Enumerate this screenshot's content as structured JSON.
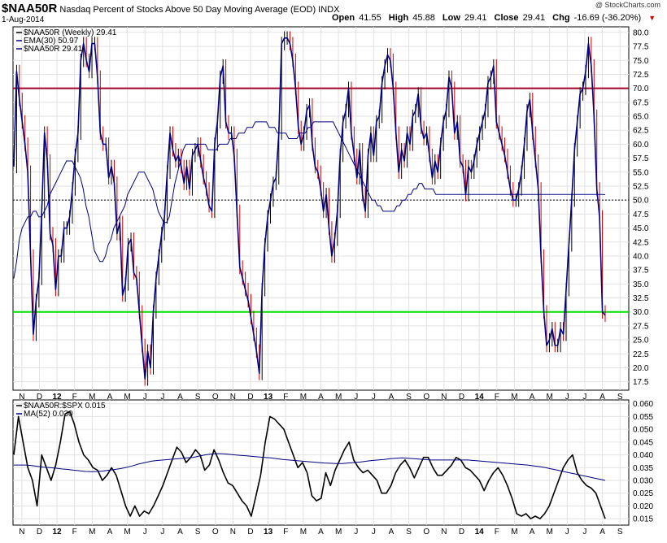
{
  "header": {
    "symbol": "$NAA50R",
    "description": "Nasdaq Percent of Stocks Above 50 Day Moving Average (EOD)",
    "exchange": "INDX",
    "date": "1-Aug-2014",
    "open_label": "Open",
    "open": "41.55",
    "high_label": "High",
    "high": "45.88",
    "low_label": "Low",
    "low": "29.41",
    "close_label": "Close",
    "close": "29.41",
    "chg_label": "Chg",
    "chg": "-16.69 (-36.20%)",
    "watermark": "@ StockCharts.com"
  },
  "colors": {
    "price_up": "#000000",
    "price_down": "#cc0000",
    "weekly_line": "#000080",
    "ema_line": "#000080",
    "ratio_line": "#000000",
    "ma_line": "#000080",
    "level_70": "#a00028",
    "level_30": "#00dd00"
  },
  "chart_data": [
    {
      "type": "line",
      "title": "$NAA50R (Weekly) 29.41",
      "legend": [
        "$NAA50R (Weekly) 29.41",
        "EMA(30) 50.97",
        "$NAA50R 29.41"
      ],
      "x_ticks": [
        "N",
        "D",
        "12",
        "F",
        "M",
        "A",
        "M",
        "J",
        "J",
        "A",
        "S",
        "O",
        "N",
        "D",
        "13",
        "F",
        "M",
        "A",
        "M",
        "J",
        "J",
        "A",
        "S",
        "O",
        "N",
        "D",
        "14",
        "F",
        "M",
        "A",
        "M",
        "J",
        "J",
        "A",
        "S"
      ],
      "y_ticks": [
        "17.5",
        "20.0",
        "22.5",
        "25.0",
        "27.5",
        "30.0",
        "32.5",
        "35.0",
        "37.5",
        "40.0",
        "42.5",
        "45.0",
        "47.5",
        "50.0",
        "52.5",
        "55.0",
        "57.5",
        "60.0",
        "62.5",
        "65.0",
        "67.5",
        "70.0",
        "72.5",
        "75.0",
        "77.5",
        "80.0"
      ],
      "ylim": [
        16,
        81
      ],
      "reference_lines": [
        70,
        50,
        30
      ],
      "series": [
        {
          "name": "$NAA50R (Weekly)",
          "values": [
            56,
            73,
            68,
            64,
            60,
            55,
            40,
            26,
            32,
            36,
            48,
            62,
            57,
            44,
            42,
            34,
            40,
            40,
            45,
            45,
            47,
            52,
            58,
            62,
            75,
            78,
            75,
            73,
            78,
            78,
            72,
            62,
            60,
            60,
            54,
            56,
            53,
            44,
            46,
            33,
            35,
            42,
            43,
            37,
            36,
            30,
            24,
            18,
            23,
            20,
            30,
            36,
            40,
            44,
            47,
            55,
            62,
            59,
            57,
            58,
            56,
            53,
            56,
            52,
            58,
            59,
            60,
            57,
            54,
            52,
            49,
            48,
            60,
            64,
            72,
            74,
            64,
            62,
            62,
            58,
            48,
            38,
            36,
            34,
            32,
            29,
            26,
            23,
            19,
            34,
            42,
            47,
            50,
            53,
            54,
            62,
            78,
            79,
            79,
            78,
            75,
            70,
            63,
            60,
            62,
            66,
            67,
            60,
            56,
            55,
            52,
            48,
            51,
            45,
            40,
            43,
            48,
            58,
            64,
            66,
            70,
            62,
            58,
            54,
            59,
            51,
            48,
            58,
            62,
            58,
            64,
            65,
            71,
            74,
            76,
            75,
            70,
            62,
            55,
            59,
            57,
            62,
            60,
            65,
            66,
            69,
            63,
            61,
            62,
            58,
            54,
            57,
            55,
            60,
            64,
            66,
            72,
            70,
            62,
            64,
            57,
            56,
            51,
            56,
            55,
            57,
            60,
            62,
            64,
            66,
            71,
            72,
            74,
            64,
            62,
            60,
            58,
            55,
            52,
            50,
            50,
            52,
            55,
            60,
            66,
            68,
            62,
            57,
            52,
            40,
            30,
            24,
            25,
            27,
            24,
            24,
            27,
            26,
            34,
            42,
            50,
            59,
            64,
            69,
            70,
            73,
            78,
            74,
            65,
            52,
            47,
            30,
            29.41
          ]
        },
        {
          "name": "EMA(30)",
          "values": [
            36,
            39,
            43,
            45,
            46,
            47,
            47,
            48,
            48,
            47,
            47,
            48,
            49,
            51,
            52,
            53,
            54,
            55,
            56,
            57,
            57,
            57,
            56,
            55,
            54,
            52,
            49,
            47,
            44,
            41,
            40,
            39,
            39,
            40,
            42,
            43,
            45,
            46,
            47,
            48,
            49,
            51,
            52,
            53,
            54,
            55,
            55,
            55,
            54,
            53,
            52,
            50,
            48,
            47,
            46,
            46,
            47,
            50,
            53,
            55,
            57,
            59,
            60,
            60,
            60,
            60,
            60,
            60,
            60,
            60,
            59,
            59,
            59,
            59,
            60,
            60,
            60,
            60,
            61,
            61,
            61,
            62,
            62,
            62,
            63,
            63,
            63,
            64,
            64,
            64,
            64,
            64,
            63,
            63,
            63,
            62,
            62,
            62,
            62,
            61,
            61,
            61,
            61,
            62,
            62,
            62,
            63,
            63,
            64,
            64,
            64,
            64,
            64,
            64,
            64,
            64,
            63,
            62,
            61,
            60,
            59,
            58,
            57,
            56,
            55,
            54,
            53,
            52,
            51,
            50,
            50,
            49,
            49,
            48,
            48,
            48,
            48,
            48,
            49,
            49,
            50,
            50,
            51,
            51,
            52,
            52,
            53,
            53,
            52,
            52,
            52,
            52,
            51,
            51,
            51,
            51,
            51,
            51,
            51,
            51,
            51,
            51,
            51,
            51,
            51,
            51,
            51,
            51,
            51,
            51,
            51,
            51,
            51,
            51,
            51,
            51,
            51,
            51,
            51,
            51,
            51,
            51,
            51,
            51,
            51,
            51,
            51,
            51,
            51,
            51,
            51,
            51,
            51,
            51,
            51,
            51,
            51,
            51,
            51,
            51,
            51,
            51,
            51,
            51,
            51,
            51,
            51,
            51,
            51,
            51,
            51,
            51,
            51,
            50.97
          ]
        }
      ]
    },
    {
      "type": "line",
      "title": "$NAA50R:$SPX 0.015",
      "legend": [
        "$NAA50R:$SPX 0.015",
        "MA(52) 0.030"
      ],
      "x_ticks": [
        "N",
        "D",
        "12",
        "F",
        "M",
        "A",
        "M",
        "J",
        "J",
        "A",
        "S",
        "O",
        "N",
        "D",
        "13",
        "F",
        "M",
        "A",
        "M",
        "J",
        "J",
        "A",
        "S",
        "O",
        "N",
        "D",
        "14",
        "F",
        "M",
        "A",
        "M",
        "J",
        "J",
        "A",
        "S"
      ],
      "y_ticks": [
        "0.015",
        "0.020",
        "0.025",
        "0.030",
        "0.035",
        "0.040",
        "0.045",
        "0.050",
        "0.055",
        "0.060"
      ],
      "ylim": [
        0.0125,
        0.0615
      ],
      "series": [
        {
          "name": "$NAA50R:$SPX",
          "values": [
            0.04,
            0.055,
            0.045,
            0.035,
            0.03,
            0.02,
            0.04,
            0.035,
            0.03,
            0.036,
            0.045,
            0.056,
            0.057,
            0.052,
            0.045,
            0.04,
            0.038,
            0.035,
            0.034,
            0.03,
            0.032,
            0.035,
            0.032,
            0.026,
            0.02,
            0.016,
            0.02,
            0.016,
            0.018,
            0.017,
            0.02,
            0.024,
            0.028,
            0.033,
            0.038,
            0.043,
            0.041,
            0.037,
            0.039,
            0.042,
            0.04,
            0.034,
            0.036,
            0.042,
            0.038,
            0.033,
            0.029,
            0.028,
            0.025,
            0.022,
            0.02,
            0.016,
            0.024,
            0.032,
            0.045,
            0.055,
            0.054,
            0.052,
            0.05,
            0.045,
            0.04,
            0.035,
            0.037,
            0.033,
            0.024,
            0.022,
            0.023,
            0.033,
            0.028,
            0.034,
            0.038,
            0.042,
            0.045,
            0.038,
            0.035,
            0.033,
            0.034,
            0.032,
            0.03,
            0.025,
            0.025,
            0.028,
            0.033,
            0.036,
            0.038,
            0.035,
            0.031,
            0.035,
            0.039,
            0.039,
            0.035,
            0.032,
            0.032,
            0.034,
            0.036,
            0.039,
            0.038,
            0.035,
            0.034,
            0.032,
            0.03,
            0.026,
            0.03,
            0.033,
            0.035,
            0.032,
            0.028,
            0.023,
            0.017,
            0.016,
            0.017,
            0.015,
            0.016,
            0.015,
            0.017,
            0.02,
            0.025,
            0.03,
            0.035,
            0.038,
            0.04,
            0.033,
            0.03,
            0.028,
            0.027,
            0.025,
            0.02,
            0.015
          ]
        },
        {
          "name": "MA(52)",
          "values": [
            0.036,
            0.036,
            0.036,
            0.0358,
            0.0355,
            0.0352,
            0.035,
            0.0348,
            0.0345,
            0.0343,
            0.034,
            0.0338,
            0.0335,
            0.0334,
            0.0335,
            0.0337,
            0.034,
            0.0343,
            0.0347,
            0.0352,
            0.0358,
            0.0365,
            0.037,
            0.0375,
            0.0378,
            0.038,
            0.0382,
            0.0384,
            0.0386,
            0.0388,
            0.039,
            0.0395,
            0.04,
            0.0403,
            0.0405,
            0.0404,
            0.0402,
            0.04,
            0.0398,
            0.0396,
            0.0394,
            0.0392,
            0.039,
            0.0388,
            0.0385,
            0.0382,
            0.038,
            0.0378,
            0.0376,
            0.0374,
            0.0372,
            0.037,
            0.0368,
            0.0367,
            0.0366,
            0.0366,
            0.0368,
            0.037,
            0.0372,
            0.0375,
            0.0378,
            0.038,
            0.0382,
            0.0385,
            0.0387,
            0.0388,
            0.0387,
            0.0385,
            0.0383,
            0.0381,
            0.038,
            0.038,
            0.038,
            0.038,
            0.038,
            0.038,
            0.038,
            0.0378,
            0.0376,
            0.0374,
            0.0372,
            0.037,
            0.0368,
            0.0366,
            0.0364,
            0.0362,
            0.036,
            0.0357,
            0.0354,
            0.035,
            0.0345,
            0.034,
            0.0335,
            0.033,
            0.0325,
            0.032,
            0.0315,
            0.031,
            0.0305,
            0.03
          ]
        }
      ]
    }
  ]
}
